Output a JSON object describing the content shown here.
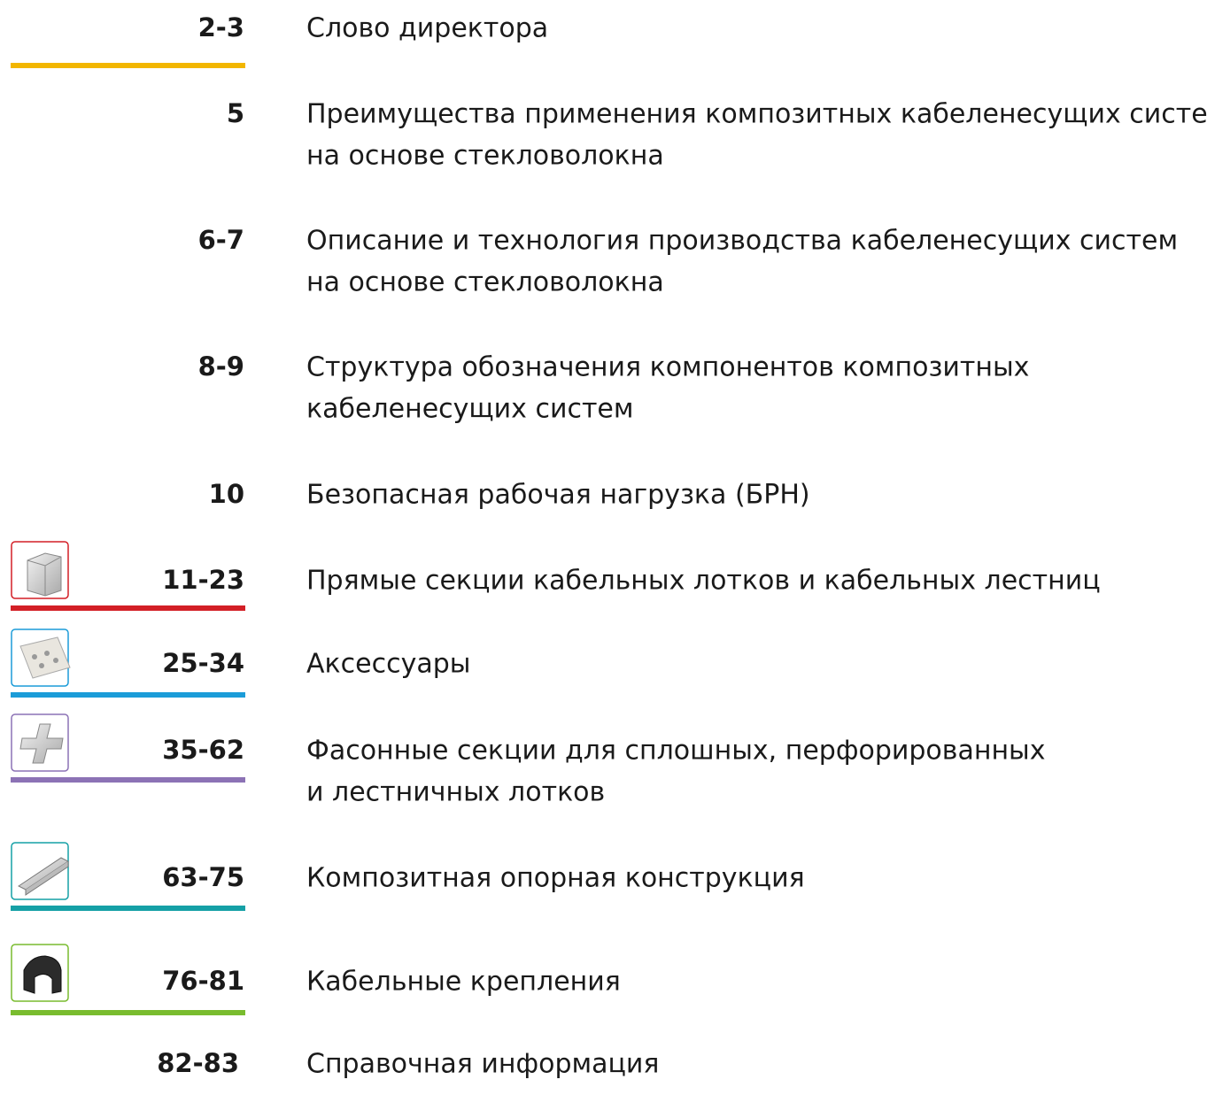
{
  "entries": [
    {
      "page": "2-3",
      "title_lines": [
        "Слово директора"
      ],
      "accent": "#f2b600"
    },
    {
      "page": "5",
      "title_lines": [
        "Преимущества применения композитных кабеленесущих систем",
        "на основе стекловолокна"
      ]
    },
    {
      "page": "6-7",
      "title_lines": [
        "Описание и технология производства кабеленесущих систем",
        "на основе стекловолокна"
      ]
    },
    {
      "page": "8-9",
      "title_lines": [
        "Структура обозначения компонентов композитных",
        "кабеленесущих систем"
      ]
    },
    {
      "page": "10",
      "title_lines": [
        "Безопасная рабочая нагрузка (БРН)"
      ]
    },
    {
      "page": "11-23",
      "title_lines": [
        "Прямые секции кабельных лотков и кабельных лестниц"
      ],
      "accent": "#d31f26"
    },
    {
      "page": "25-34",
      "title_lines": [
        "Аксессуары"
      ],
      "accent": "#1b9cd8"
    },
    {
      "page": "35-62",
      "title_lines": [
        "Фасонные секции для сплошных, перфорированных",
        "и лестничных лотков"
      ],
      "accent": "#8c72b5"
    },
    {
      "page": "63-75",
      "title_lines": [
        "Композитная опорная конструкция"
      ],
      "accent": "#15a0a6"
    },
    {
      "page": "76-81",
      "title_lines": [
        "Кабельные крепления"
      ],
      "accent": "#79bc2e"
    },
    {
      "page": "82-83",
      "title_lines": [
        "Справочная информация"
      ]
    }
  ]
}
